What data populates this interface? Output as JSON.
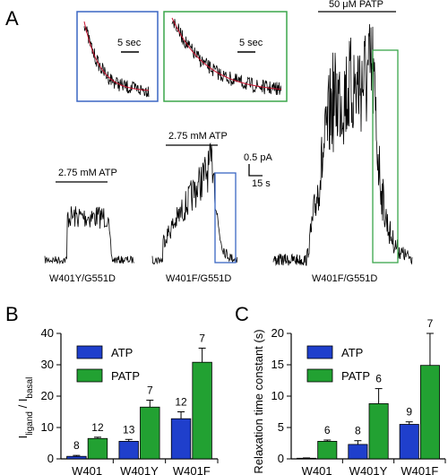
{
  "panels": {
    "a": {
      "letter": "A",
      "traces": [
        {
          "label": "W401Y/G551D",
          "stimulus": "2.75 mM ATP"
        },
        {
          "label": "W401F/G551D",
          "stimulus": "2.75 mM ATP"
        },
        {
          "label": "W401F/G551D",
          "stimulus": "50 μM PATP"
        }
      ],
      "scale_current": "0.5 pA",
      "scale_time": "15 s",
      "inset_scale_left": "5 sec",
      "inset_scale_right": "5 sec",
      "colors": {
        "trace": "#000000",
        "fit": "#c8102e",
        "inset_blue": "#3a66c4",
        "inset_green": "#3aa64a"
      }
    },
    "b": {
      "letter": "B"
    },
    "c": {
      "letter": "C"
    }
  },
  "chart_data": [
    {
      "type": "bar",
      "panel": "B",
      "categories": [
        "W401",
        "W401Y",
        "W401F"
      ],
      "series": [
        {
          "name": "ATP",
          "color": "#1f3fcc",
          "values": [
            0.8,
            5.6,
            12.8
          ],
          "errors": [
            0.3,
            0.6,
            2.2
          ],
          "n": [
            "8",
            "13",
            "12"
          ]
        },
        {
          "name": "PATP",
          "color": "#22a132",
          "values": [
            6.5,
            16.5,
            30.8
          ],
          "errors": [
            0.4,
            2.2,
            4.5
          ],
          "n": [
            "12",
            "7",
            "7"
          ]
        }
      ],
      "ylabel": "I_ligand / I_basal",
      "ylabel_main_1": "I",
      "ylabel_sub_1": "ligand",
      "ylabel_sep": " / I",
      "ylabel_sub_2": "basal",
      "ylim": [
        0,
        40
      ],
      "yticks": [
        "0",
        "10",
        "20",
        "30",
        "40"
      ],
      "legend": "top-left"
    },
    {
      "type": "bar",
      "panel": "C",
      "categories": [
        "W401",
        "W401Y",
        "W401F"
      ],
      "series": [
        {
          "name": "ATP",
          "color": "#1f3fcc",
          "values": [
            0.1,
            2.3,
            5.5
          ],
          "errors": [
            0.05,
            0.6,
            0.4
          ],
          "n": [
            "",
            "8",
            "9"
          ]
        },
        {
          "name": "PATP",
          "color": "#22a132",
          "values": [
            2.8,
            8.8,
            14.9
          ],
          "errors": [
            0.2,
            2.4,
            5.1
          ],
          "n": [
            "6",
            "6",
            "7"
          ]
        }
      ],
      "ylabel": "Relaxation time constant (s)",
      "ylim": [
        0,
        20
      ],
      "yticks": [
        "0",
        "5",
        "10",
        "15",
        "20"
      ],
      "legend": "top-left"
    }
  ]
}
